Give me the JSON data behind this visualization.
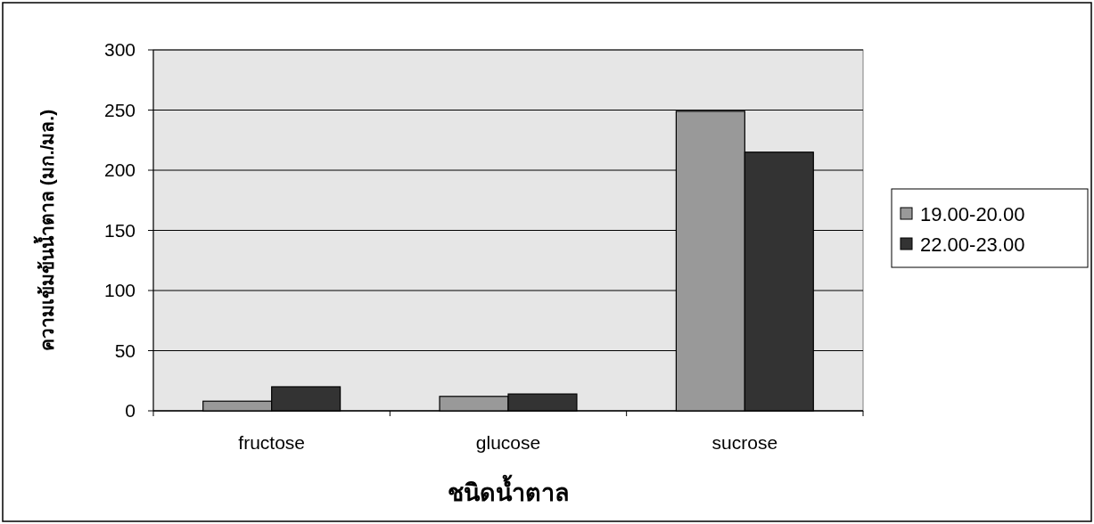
{
  "chart_data": {
    "type": "bar",
    "xlabel": "ชนิดน้ำตาล",
    "ylabel": "ความเข้มข้นน้ำตาล (มก./มล.)",
    "categories": [
      "fructose",
      "glucose",
      "sucrose"
    ],
    "series": [
      {
        "name": "19.00-20.00",
        "color": "#999999",
        "values": [
          8,
          12,
          249
        ]
      },
      {
        "name": "22.00-23.00",
        "color": "#333333",
        "values": [
          20,
          14,
          215
        ]
      }
    ],
    "ylim": [
      0,
      300
    ],
    "yticks": [
      0,
      50,
      100,
      150,
      200,
      250,
      300
    ],
    "grid": "y",
    "legend": "right"
  }
}
